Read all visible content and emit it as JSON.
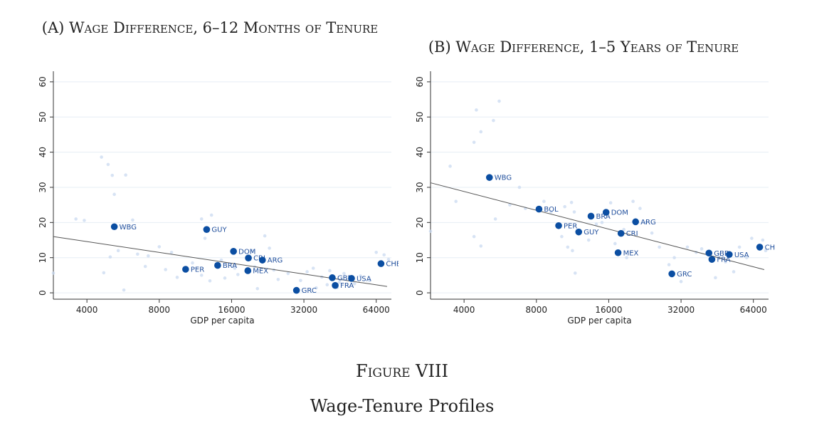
{
  "figure": {
    "number": "Figure VIII",
    "caption": "Wage-Tenure Profiles"
  },
  "colors": {
    "highlight": "#0b4ea2",
    "background_points": "#c9daf0",
    "fit_line": "#555555",
    "grid": "#e6edf5"
  },
  "chart_data": [
    {
      "type": "scatter",
      "title": "(A) Wage Difference, 6–12 Months of Tenure",
      "xlabel": "GDP per capita",
      "ylabel": "",
      "x_scale": "log2",
      "xlim": [
        2900,
        74000
      ],
      "ylim": [
        -1,
        62
      ],
      "x_ticks": [
        4000,
        8000,
        16000,
        32000,
        64000
      ],
      "y_ticks": [
        0,
        10,
        20,
        30,
        40,
        50,
        60
      ],
      "grid": "horizontal",
      "fit_line": [
        [
          2900,
          16.0
        ],
        [
          71000,
          1.8
        ]
      ],
      "highlighted": [
        {
          "label": "WBG",
          "x": 5200,
          "y": 18.8
        },
        {
          "label": "GUY",
          "x": 12600,
          "y": 18.0
        },
        {
          "label": "DOM",
          "x": 16300,
          "y": 11.8
        },
        {
          "label": "CRI",
          "x": 18800,
          "y": 9.9
        },
        {
          "label": "ARG",
          "x": 21500,
          "y": 9.3
        },
        {
          "label": "PER",
          "x": 10300,
          "y": 6.7
        },
        {
          "label": "BRA",
          "x": 14000,
          "y": 7.8
        },
        {
          "label": "MEX",
          "x": 18700,
          "y": 6.3
        },
        {
          "label": "GRC",
          "x": 29800,
          "y": 0.7
        },
        {
          "label": "GBR",
          "x": 42000,
          "y": 4.3
        },
        {
          "label": "USA",
          "x": 50500,
          "y": 4.1
        },
        {
          "label": "FRA",
          "x": 43200,
          "y": 2.1
        },
        {
          "label": "CHE",
          "x": 67000,
          "y": 8.3
        }
      ],
      "background": [
        [
          4600,
          38.6
        ],
        [
          4900,
          36.5
        ],
        [
          5100,
          33.4
        ],
        [
          5200,
          28.0
        ],
        [
          5800,
          33.5
        ],
        [
          3600,
          21.0
        ],
        [
          3900,
          20.6
        ],
        [
          6200,
          20.7
        ],
        [
          12000,
          21.0
        ],
        [
          13200,
          22.1
        ],
        [
          12400,
          15.5
        ],
        [
          5000,
          10.2
        ],
        [
          5400,
          12.0
        ],
        [
          6500,
          11.0
        ],
        [
          7200,
          10.5
        ],
        [
          8000,
          13.1
        ],
        [
          9000,
          11.5
        ],
        [
          2900,
          5.6
        ],
        [
          4700,
          5.7
        ],
        [
          5700,
          0.8
        ],
        [
          7000,
          7.5
        ],
        [
          8500,
          6.6
        ],
        [
          9500,
          4.4
        ],
        [
          11000,
          8.5
        ],
        [
          12000,
          5.0
        ],
        [
          13000,
          3.4
        ],
        [
          14500,
          9.3
        ],
        [
          15000,
          4.2
        ],
        [
          16500,
          7.0
        ],
        [
          17000,
          5.2
        ],
        [
          19500,
          12.0
        ],
        [
          20000,
          7.4
        ],
        [
          22000,
          16.2
        ],
        [
          23000,
          12.7
        ],
        [
          24000,
          6.5
        ],
        [
          25000,
          3.8
        ],
        [
          20500,
          1.2
        ],
        [
          27500,
          5.5
        ],
        [
          31000,
          3.5
        ],
        [
          33000,
          6.0
        ],
        [
          35000,
          7.0
        ],
        [
          38000,
          4.5
        ],
        [
          40000,
          2.3
        ],
        [
          41000,
          6.3
        ],
        [
          45000,
          3.0
        ],
        [
          47000,
          5.5
        ],
        [
          52000,
          2.6
        ],
        [
          55000,
          4.8
        ],
        [
          60000,
          3.5
        ],
        [
          64000,
          11.5
        ],
        [
          69000,
          10.8
        ],
        [
          72000,
          9.5
        ],
        [
          36000,
          1.4
        ],
        [
          44000,
          1.5
        ]
      ]
    },
    {
      "type": "scatter",
      "title": "(B) Wage Difference, 1–5 Years of Tenure",
      "xlabel": "GDP per capita",
      "ylabel": "",
      "x_scale": "log2",
      "xlim": [
        2900,
        74000
      ],
      "ylim": [
        -1,
        62
      ],
      "x_ticks": [
        4000,
        8000,
        16000,
        32000,
        64000
      ],
      "y_ticks": [
        0,
        10,
        20,
        30,
        40,
        50,
        60
      ],
      "grid": "horizontal",
      "fit_line": [
        [
          2900,
          31.3
        ],
        [
          71000,
          6.6
        ]
      ],
      "highlighted": [
        {
          "label": "WBG",
          "x": 5100,
          "y": 32.8
        },
        {
          "label": "BOL",
          "x": 8200,
          "y": 23.8
        },
        {
          "label": "BRA",
          "x": 13500,
          "y": 21.8
        },
        {
          "label": "DOM",
          "x": 15600,
          "y": 22.9
        },
        {
          "label": "ARG",
          "x": 20700,
          "y": 20.2
        },
        {
          "label": "PER",
          "x": 9900,
          "y": 19.1
        },
        {
          "label": "GUY",
          "x": 12000,
          "y": 17.3
        },
        {
          "label": "CRI",
          "x": 18000,
          "y": 16.9
        },
        {
          "label": "MEX",
          "x": 17500,
          "y": 11.4
        },
        {
          "label": "GRC",
          "x": 29300,
          "y": 5.4
        },
        {
          "label": "GBR",
          "x": 41800,
          "y": 11.3
        },
        {
          "label": "USA",
          "x": 50800,
          "y": 10.9
        },
        {
          "label": "FRA",
          "x": 43000,
          "y": 9.5
        },
        {
          "label": "CHE",
          "x": 68000,
          "y": 13.0
        }
      ],
      "background": [
        [
          4500,
          52.0
        ],
        [
          5600,
          54.5
        ],
        [
          4700,
          45.8
        ],
        [
          4400,
          42.8
        ],
        [
          5300,
          49.0
        ],
        [
          3500,
          36.0
        ],
        [
          3700,
          26.0
        ],
        [
          2900,
          17.5
        ],
        [
          4400,
          16.0
        ],
        [
          4700,
          13.3
        ],
        [
          5400,
          21.0
        ],
        [
          6200,
          25.0
        ],
        [
          6800,
          30.0
        ],
        [
          7200,
          24.0
        ],
        [
          8600,
          26.0
        ],
        [
          9200,
          23.0
        ],
        [
          10500,
          24.5
        ],
        [
          11200,
          25.7
        ],
        [
          11500,
          23.0
        ],
        [
          10200,
          16.0
        ],
        [
          10800,
          13.0
        ],
        [
          11300,
          12.0
        ],
        [
          11600,
          5.6
        ],
        [
          13200,
          15.0
        ],
        [
          14200,
          19.5
        ],
        [
          15000,
          20.0
        ],
        [
          16300,
          25.6
        ],
        [
          17000,
          14.0
        ],
        [
          18500,
          18.0
        ],
        [
          20200,
          26.0
        ],
        [
          21600,
          24.0
        ],
        [
          22800,
          20.0
        ],
        [
          24200,
          17.0
        ],
        [
          19000,
          10.0
        ],
        [
          26000,
          13.0
        ],
        [
          28500,
          8.0
        ],
        [
          30000,
          10.0
        ],
        [
          32000,
          3.2
        ],
        [
          34000,
          13.0
        ],
        [
          37000,
          11.5
        ],
        [
          39000,
          12.5
        ],
        [
          44500,
          4.3
        ],
        [
          46000,
          11.0
        ],
        [
          49000,
          8.8
        ],
        [
          53000,
          6.0
        ],
        [
          56000,
          13.0
        ],
        [
          60000,
          10.0
        ],
        [
          63000,
          15.5
        ],
        [
          70000,
          15.0
        ],
        [
          72000,
          12.0
        ]
      ]
    }
  ]
}
